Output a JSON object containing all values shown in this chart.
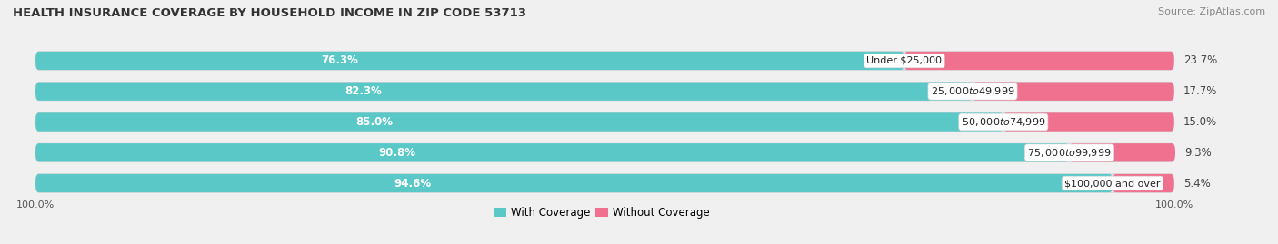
{
  "title": "HEALTH INSURANCE COVERAGE BY HOUSEHOLD INCOME IN ZIP CODE 53713",
  "source": "Source: ZipAtlas.com",
  "categories": [
    "Under $25,000",
    "$25,000 to $49,999",
    "$50,000 to $74,999",
    "$75,000 to $99,999",
    "$100,000 and over"
  ],
  "with_coverage": [
    76.3,
    82.3,
    85.0,
    90.8,
    94.6
  ],
  "without_coverage": [
    23.7,
    17.7,
    15.0,
    9.3,
    5.4
  ],
  "color_with": "#5BC8C8",
  "color_without": "#F07090",
  "bar_height": 0.6,
  "background_color": "#f0f0f0",
  "bar_background": "#e0e0e8",
  "label_fontsize": 8.5,
  "title_fontsize": 9.5,
  "legend_fontsize": 8.5,
  "source_fontsize": 8
}
